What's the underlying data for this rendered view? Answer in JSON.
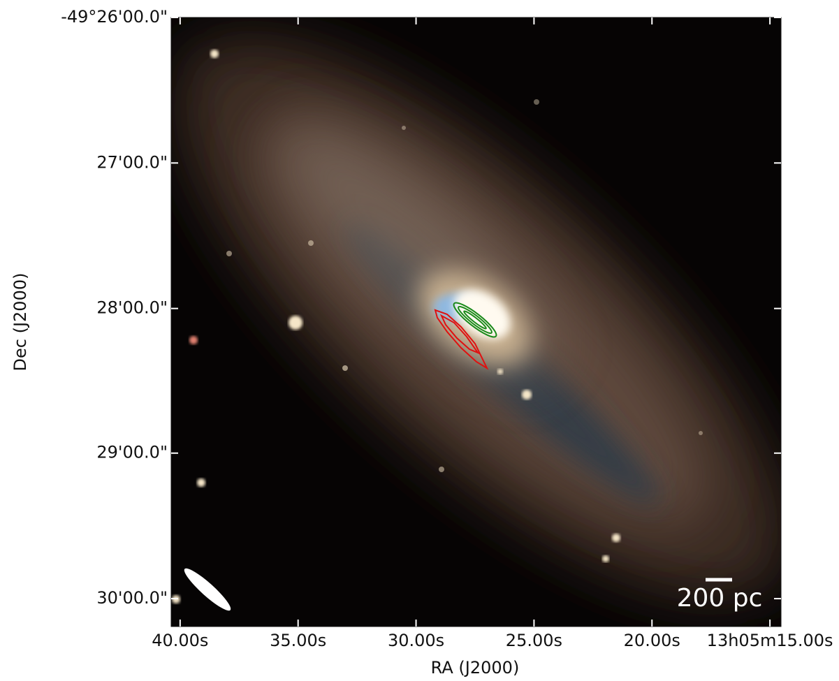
{
  "chart_data": {
    "type": "image",
    "xlabel": "RA (J2000)",
    "ylabel": "Dec (J2000)",
    "annotation": "200 pc",
    "xlim": [
      40.38,
      14.53
    ],
    "xticks": [
      {
        "value": 40,
        "label": "40.00s"
      },
      {
        "value": 35,
        "label": "35.00s"
      },
      {
        "value": 30,
        "label": "30.00s"
      },
      {
        "value": 25,
        "label": "25.00s"
      },
      {
        "value": 20,
        "label": "20.00s"
      },
      {
        "value": 15,
        "label": "13h05m15.00s"
      }
    ],
    "ylim": [
      -49.5032,
      -49.4333
    ],
    "yticks": [
      {
        "value": -49.4333,
        "label": "-49°26'00.0\""
      },
      {
        "value": -49.45,
        "label": "27'00.0\""
      },
      {
        "value": -49.4667,
        "label": "28'00.0\""
      },
      {
        "value": -49.4833,
        "label": "29'00.0\""
      },
      {
        "value": -49.5,
        "label": "30'00.0\""
      }
    ]
  }
}
